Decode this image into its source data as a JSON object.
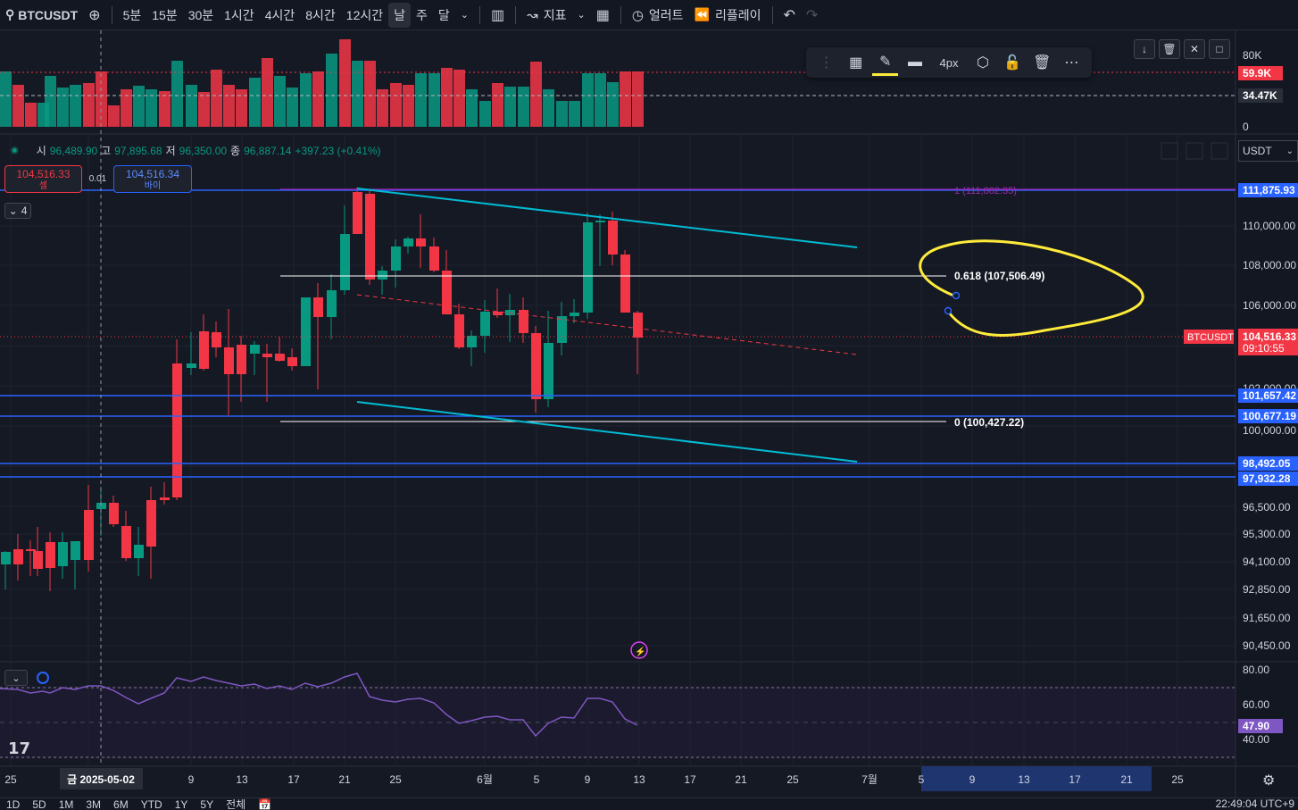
{
  "toolbar": {
    "symbol": "BTCUSDT",
    "intervals": [
      "5분",
      "15분",
      "30분",
      "1시간",
      "4시간",
      "8시간",
      "12시간",
      "날",
      "주",
      "달"
    ],
    "active_interval": "날",
    "indicators_label": "지표",
    "alert_label": "얼러트",
    "replay_label": "리플레이"
  },
  "drawing_toolbar": {
    "width_label": "4px"
  },
  "ohlc": {
    "open_label": "시",
    "open": "96,489.90",
    "high_label": "고",
    "high": "97,895.68",
    "low_label": "저",
    "low": "96,350.00",
    "close_label": "종",
    "close": "96,887.14",
    "change": "+397.23 (+0.41%)"
  },
  "order": {
    "sell_price": "104,516.33",
    "sell_label": "셀",
    "spread": "0.01",
    "buy_price": "104,516.34",
    "buy_label": "바이"
  },
  "legend_count": "4",
  "currency": "USDT",
  "volume_axis": [
    "80K",
    "0"
  ],
  "volume_badges": [
    {
      "text": "59.9K",
      "color": "#f23645"
    },
    {
      "text": "34.47K",
      "color": "#2a2e39"
    }
  ],
  "price_axis": [
    "110,000.00",
    "108,000.00",
    "106,000.00",
    "102,000.00",
    "100,000.00",
    "96,500.00",
    "95,300.00",
    "94,100.00",
    "92,850.00",
    "91,650.00",
    "90,450.00"
  ],
  "price_badges": [
    {
      "text": "111,875.93",
      "color": "#2962ff"
    },
    {
      "text": "101,657.42",
      "color": "#2962ff"
    },
    {
      "text": "100,677.19",
      "color": "#2962ff"
    },
    {
      "text": "98,492.05",
      "color": "#2962ff"
    },
    {
      "text": "97,932.28",
      "color": "#2962ff"
    }
  ],
  "last_price": {
    "symbol": "BTCUSDT",
    "price": "104,516.33",
    "countdown": "09:10:55",
    "color": "#f23645"
  },
  "fib": {
    "level_1": "1 (111,882.35)",
    "level_618": "0.618 (107,506.49)",
    "level_0": "0 (100,427.22)"
  },
  "rsi_axis": [
    "80.00",
    "60.00",
    "40.00"
  ],
  "rsi_value": "47.90",
  "time_axis": [
    "25",
    "9",
    "13",
    "17",
    "21",
    "25",
    "6월",
    "5",
    "9",
    "13",
    "17",
    "21",
    "25",
    "7월",
    "5",
    "9",
    "13",
    "17",
    "21",
    "25"
  ],
  "crosshair_date": "금 2025-05-02",
  "bottom_bar": {
    "ranges": [
      "1D",
      "5D",
      "1M",
      "3M",
      "6M",
      "YTD",
      "1Y",
      "5Y",
      "전체"
    ],
    "clock": "22:49:04 UTC+9"
  },
  "colors": {
    "up": "#089981",
    "down": "#f23645",
    "trend": "#00bcd4",
    "support": "#2962ff",
    "annotation": "#ffeb3b",
    "rsi": "#7e57c2"
  }
}
